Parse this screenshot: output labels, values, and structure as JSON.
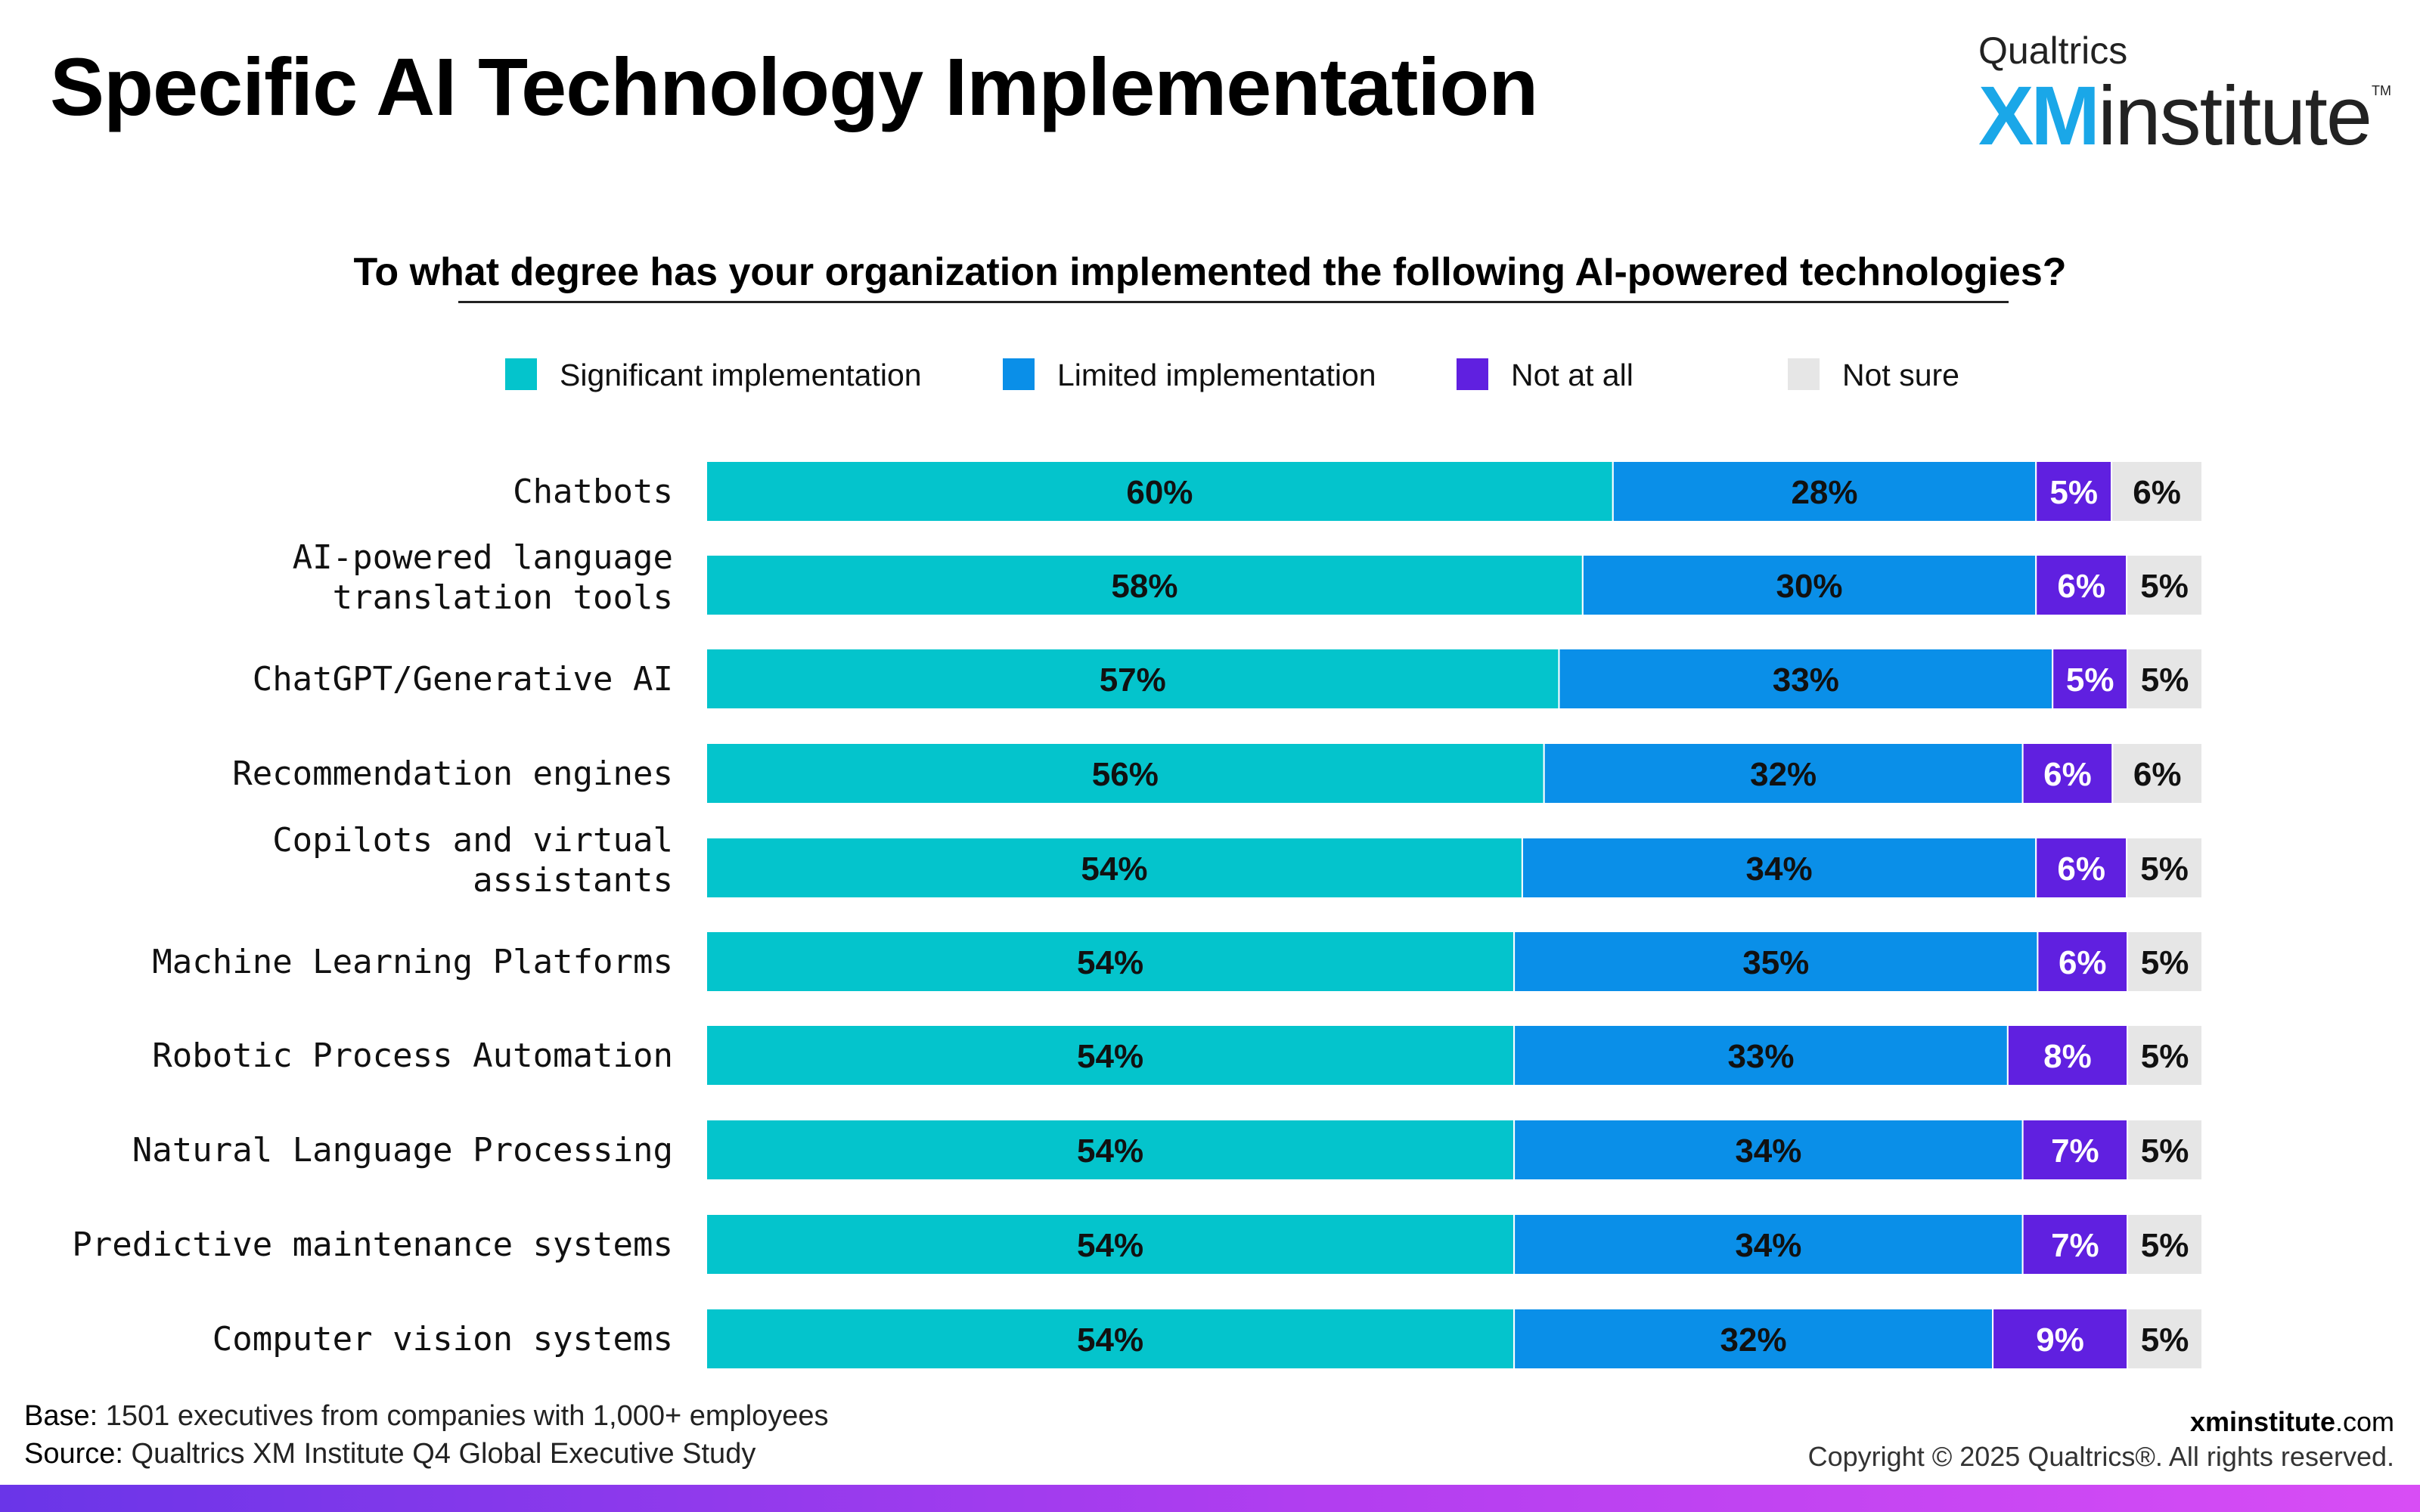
{
  "header": {
    "title": "Specific AI Technology Implementation",
    "logo_top": "Qualtrics",
    "logo_xm": "XM",
    "logo_institute": "institute",
    "logo_tm": "TM"
  },
  "chart_data": {
    "type": "bar",
    "orientation": "horizontal",
    "stacked": true,
    "title": "To what degree has your organization implemented the following AI-powered technologies?",
    "categories": [
      "Chatbots",
      "AI-powered language translation tools",
      "ChatGPT/Generative AI",
      "Recommendation engines",
      "Copilots and virtual assistants",
      "Machine Learning Platforms",
      "Robotic Process Automation",
      "Natural Language Processing",
      "Predictive maintenance systems",
      "Computer vision systems"
    ],
    "series": [
      {
        "name": "Significant implementation",
        "color": "#04c4cc",
        "values": [
          60,
          58,
          57,
          56,
          54,
          54,
          54,
          54,
          54,
          54
        ]
      },
      {
        "name": "Limited implementation",
        "color": "#0a8fe8",
        "values": [
          28,
          30,
          33,
          32,
          34,
          35,
          33,
          34,
          34,
          32
        ]
      },
      {
        "name": "Not at all",
        "color": "#6020e0",
        "values": [
          5,
          6,
          5,
          6,
          6,
          6,
          8,
          7,
          7,
          9
        ]
      },
      {
        "name": "Not sure",
        "color": "#e6e6e6",
        "values": [
          6,
          5,
          5,
          6,
          5,
          5,
          5,
          5,
          5,
          5
        ]
      }
    ],
    "value_suffix": "%",
    "legend_position": "top",
    "grid": false
  },
  "footer": {
    "base_key": "Base:",
    "base_text": " 1501 executives from companies with 1,000+ employees",
    "source_key": "Source:",
    "source_text": " Qualtrics XM Institute Q4 Global Executive Study",
    "site_bold": "xminstitute",
    "site_rest": ".com",
    "copyright": "Copyright © 2025 Qualtrics®. All rights reserved."
  }
}
